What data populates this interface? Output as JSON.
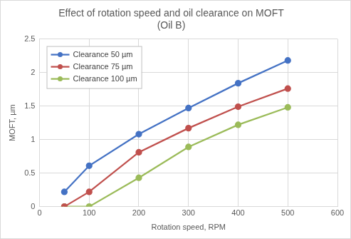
{
  "chart_data": {
    "type": "line",
    "title": "Effect of rotation speed and oil clearance on MOFT (Oil B)",
    "x_label": "Rotation speed, RPM",
    "y_label": "MOFT, µm",
    "x": [
      50,
      100,
      200,
      300,
      400,
      500
    ],
    "series": [
      {
        "name": "Clearance 50 µm",
        "color": "#4472c4",
        "values": [
          0.22,
          0.61,
          1.08,
          1.47,
          1.84,
          2.18
        ]
      },
      {
        "name": "Clearance 75 µm",
        "color": "#c0504d",
        "values": [
          0,
          0.22,
          0.81,
          1.17,
          1.49,
          1.76
        ]
      },
      {
        "name": "Clearance 100 µm",
        "color": "#9bbb59",
        "values": [
          0,
          0,
          0.43,
          0.89,
          1.22,
          1.48
        ]
      }
    ],
    "xlim": [
      0,
      600
    ],
    "xticks": [
      0,
      100,
      200,
      300,
      400,
      500,
      600
    ],
    "ylim": [
      0,
      2.5
    ],
    "yticks": [
      0,
      0.5,
      1,
      1.5,
      2,
      2.5
    ],
    "grid": true,
    "legend": "upper left",
    "marker": "circle",
    "line_style": "solid"
  }
}
